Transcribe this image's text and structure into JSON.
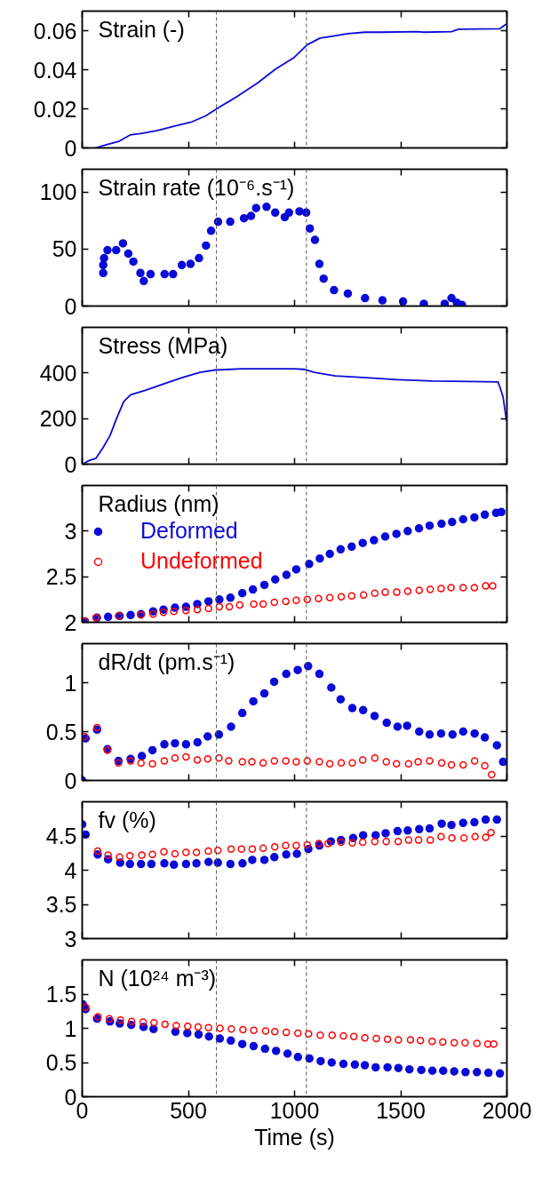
{
  "chart_data": [
    {
      "type": "line",
      "title": "Strain (-)",
      "xlim": [
        0,
        2000
      ],
      "xticks": [
        0,
        500,
        1000,
        1500,
        2000
      ],
      "ylim": [
        0,
        0.07
      ],
      "yticks": [
        0,
        0.02,
        0.04,
        0.06
      ],
      "tick_labels": "y",
      "grid": false,
      "ref_lines": [
        {
          "axis": "x",
          "value": 632,
          "color": "#555555",
          "line_style": "dashed"
        },
        {
          "axis": "x",
          "value": 1056,
          "color": "#555555",
          "line_style": "dashed"
        }
      ],
      "series": [
        {
          "color": "#0a0ad8",
          "line_style": "solid",
          "x": [
            62,
            111,
            176,
            225,
            274,
            355,
            436,
            518,
            583,
            638,
            730,
            827,
            909,
            998,
            1060,
            1120,
            1169,
            1251,
            1332,
            1414,
            1576,
            1609,
            1739,
            1772,
            1967,
            1997
          ],
          "values": [
            0,
            0.0015,
            0.0035,
            0.0066,
            0.0073,
            0.0089,
            0.0112,
            0.0134,
            0.0165,
            0.0203,
            0.0264,
            0.0333,
            0.0402,
            0.0463,
            0.0528,
            0.0562,
            0.057,
            0.0585,
            0.0592,
            0.0592,
            0.0595,
            0.0592,
            0.0595,
            0.0607,
            0.061,
            0.0634
          ]
        }
      ]
    },
    {
      "type": "scatter",
      "title": "Strain rate (10⁻⁶.s⁻¹)",
      "xlim": [
        0,
        2000
      ],
      "xticks": [
        0,
        500,
        1000,
        1500,
        2000
      ],
      "ylim": [
        0,
        120
      ],
      "yticks": [
        0,
        50,
        100
      ],
      "tick_labels": "y",
      "grid": false,
      "ref_lines": [
        {
          "axis": "x",
          "value": 632,
          "color": "#555555",
          "line_style": "dashed"
        },
        {
          "axis": "x",
          "value": 1056,
          "color": "#555555",
          "line_style": "dashed"
        }
      ],
      "series": [
        {
          "color": "#0a0ad8",
          "marker": "circle",
          "x": [
            99,
            99,
            103,
            119,
            160,
            192,
            217,
            241,
            274,
            290,
            322,
            388,
            428,
            469,
            510,
            550,
            583,
            607,
            640,
            697,
            762,
            795,
            819,
            868,
            909,
            954,
            974,
            1023,
            1055,
            1072,
            1096,
            1117,
            1137,
            1186,
            1251,
            1332,
            1414,
            1511,
            1609,
            1707,
            1739,
            1764,
            1788
          ],
          "values": [
            29,
            36,
            42,
            49,
            49,
            55,
            46,
            39,
            29,
            22,
            28,
            28,
            28,
            36,
            37,
            42,
            53,
            66,
            74,
            74,
            77,
            79,
            86,
            87,
            82,
            78,
            82,
            83,
            82,
            68,
            58,
            37,
            24,
            14,
            11,
            7,
            5,
            4,
            2,
            2,
            7,
            3,
            1
          ]
        }
      ]
    },
    {
      "type": "line",
      "title": "Stress (MPa)",
      "xlim": [
        0,
        2000
      ],
      "xticks": [
        0,
        500,
        1000,
        1500,
        2000
      ],
      "ylim": [
        0,
        600
      ],
      "yticks": [
        0,
        200,
        400
      ],
      "tick_labels": "y",
      "grid": false,
      "ref_lines": [
        {
          "axis": "x",
          "value": 632,
          "color": "#555555",
          "line_style": "dashed"
        },
        {
          "axis": "x",
          "value": 1056,
          "color": "#555555",
          "line_style": "dashed"
        }
      ],
      "series": [
        {
          "color": "#0a0ad8",
          "line_style": "solid",
          "x": [
            8,
            33,
            65,
            98,
            131,
            163,
            196,
            228,
            294,
            375,
            473,
            555,
            626,
            750,
            995,
            1044,
            1093,
            1191,
            1321,
            1485,
            1648,
            1958,
            1969,
            1982,
            1998
          ],
          "values": [
            4,
            16,
            26,
            72,
            125,
            203,
            275,
            304,
            323,
            349,
            380,
            403,
            413,
            418,
            418,
            416,
            403,
            387,
            380,
            371,
            365,
            361,
            332,
            295,
            190
          ]
        }
      ]
    },
    {
      "type": "scatter",
      "title": "Radius (nm)",
      "xlim": [
        0,
        2000
      ],
      "xticks": [
        0,
        500,
        1000,
        1500,
        2000
      ],
      "ylim": [
        2,
        3.5
      ],
      "yticks": [
        2,
        2.5,
        3
      ],
      "tick_labels": "y",
      "grid": false,
      "legend": "top left",
      "ref_lines": [
        {
          "axis": "x",
          "value": 632,
          "color": "#555555",
          "line_style": "dashed"
        },
        {
          "axis": "x",
          "value": 1056,
          "color": "#555555",
          "line_style": "dashed"
        }
      ],
      "series": [
        {
          "name": "Deformed",
          "color": "#0a0ad8",
          "marker": "circle",
          "x": [
            13,
            69,
            122,
            176,
            228,
            277,
            334,
            383,
            437,
            489,
            542,
            595,
            646,
            698,
            754,
            804,
            858,
            909,
            962,
            1008,
            1069,
            1119,
            1166,
            1217,
            1269,
            1321,
            1374,
            1427,
            1480,
            1533,
            1586,
            1636,
            1692,
            1742,
            1794,
            1847,
            1896,
            1949,
            1974
          ],
          "values": [
            2.01,
            2.05,
            2.06,
            2.07,
            2.08,
            2.09,
            2.12,
            2.14,
            2.16,
            2.17,
            2.2,
            2.23,
            2.25,
            2.27,
            2.32,
            2.36,
            2.41,
            2.47,
            2.52,
            2.58,
            2.64,
            2.7,
            2.75,
            2.8,
            2.83,
            2.87,
            2.9,
            2.94,
            2.97,
            3.0,
            3.03,
            3.06,
            3.08,
            3.1,
            3.13,
            3.15,
            3.18,
            3.2,
            3.21
          ]
        },
        {
          "name": "Undeformed",
          "color": "#ff0000",
          "marker": "circle_open",
          "x": [
            13,
            65,
            171,
            277,
            334,
            383,
            432,
            489,
            542,
            595,
            646,
            693,
            742,
            808,
            852,
            905,
            959,
            1008,
            1060,
            1113,
            1166,
            1220,
            1269,
            1325,
            1378,
            1427,
            1481,
            1533,
            1587,
            1639,
            1690,
            1737,
            1794,
            1847,
            1900,
            1933
          ],
          "values": [
            2.01,
            2.05,
            2.07,
            2.08,
            2.09,
            2.11,
            2.12,
            2.13,
            2.14,
            2.15,
            2.17,
            2.17,
            2.19,
            2.2,
            2.2,
            2.22,
            2.23,
            2.24,
            2.25,
            2.26,
            2.27,
            2.28,
            2.29,
            2.3,
            2.32,
            2.33,
            2.33,
            2.34,
            2.35,
            2.36,
            2.37,
            2.38,
            2.38,
            2.38,
            2.4,
            2.4
          ]
        }
      ]
    },
    {
      "type": "scatter",
      "title": "dR/dt (pm.s⁻¹)",
      "xlim": [
        0,
        2000
      ],
      "xticks": [
        0,
        500,
        1000,
        1500,
        2000
      ],
      "ylim": [
        0,
        1.4
      ],
      "yticks": [
        0,
        0.5,
        1
      ],
      "tick_labels": "y",
      "grid": false,
      "ref_lines": [
        {
          "axis": "x",
          "value": 632,
          "color": "#555555",
          "line_style": "dashed"
        },
        {
          "axis": "x",
          "value": 1056,
          "color": "#555555",
          "line_style": "dashed"
        }
      ],
      "series": [
        {
          "color": "#0a0ad8",
          "marker": "circle",
          "x": [
            0,
            16,
            70,
            119,
            171,
            228,
            281,
            331,
            387,
            437,
            489,
            543,
            591,
            644,
            701,
            754,
            806,
            858,
            904,
            961,
            1015,
            1064,
            1117,
            1173,
            1217,
            1272,
            1323,
            1377,
            1434,
            1485,
            1530,
            1587,
            1636,
            1690,
            1744,
            1794,
            1848,
            1896,
            1953,
            1982
          ],
          "values": [
            0,
            0.43,
            0.52,
            0.32,
            0.2,
            0.22,
            0.25,
            0.31,
            0.37,
            0.38,
            0.37,
            0.39,
            0.45,
            0.47,
            0.55,
            0.69,
            0.81,
            0.89,
            1.01,
            1.09,
            1.13,
            1.17,
            1.09,
            0.95,
            0.83,
            0.74,
            0.72,
            0.66,
            0.59,
            0.55,
            0.56,
            0.5,
            0.47,
            0.48,
            0.47,
            0.5,
            0.48,
            0.44,
            0.36,
            0.19
          ]
        },
        {
          "color": "#ff0000",
          "marker": "circle_open",
          "x": [
            11,
            70,
            119,
            171,
            228,
            277,
            331,
            387,
            437,
            489,
            542,
            591,
            644,
            690,
            754,
            799,
            852,
            905,
            959,
            1008,
            1060,
            1117,
            1166,
            1220,
            1272,
            1321,
            1378,
            1432,
            1480,
            1537,
            1582,
            1636,
            1693,
            1739,
            1794,
            1848,
            1896,
            1928
          ],
          "values": [
            0.45,
            0.54,
            0.31,
            0.18,
            0.2,
            0.18,
            0.17,
            0.2,
            0.23,
            0.24,
            0.21,
            0.22,
            0.23,
            0.2,
            0.19,
            0.19,
            0.18,
            0.2,
            0.2,
            0.19,
            0.2,
            0.19,
            0.17,
            0.18,
            0.18,
            0.21,
            0.23,
            0.19,
            0.17,
            0.17,
            0.19,
            0.2,
            0.18,
            0.16,
            0.16,
            0.2,
            0.15,
            0.06
          ]
        }
      ]
    },
    {
      "type": "scatter",
      "title": "fv (%)",
      "xlim": [
        0,
        2000
      ],
      "xticks": [
        0,
        500,
        1000,
        1500,
        2000
      ],
      "ylim": [
        3,
        5
      ],
      "yticks": [
        3,
        3.5,
        4,
        4.5
      ],
      "tick_labels": "y",
      "grid": false,
      "ref_lines": [
        {
          "axis": "x",
          "value": 632,
          "color": "#555555",
          "line_style": "dashed"
        },
        {
          "axis": "x",
          "value": 1056,
          "color": "#555555",
          "line_style": "dashed"
        }
      ],
      "series": [
        {
          "color": "#0a0ad8",
          "marker": "circle",
          "x": [
            0,
            16,
            73,
            122,
            179,
            225,
            277,
            326,
            387,
            432,
            489,
            538,
            595,
            639,
            698,
            755,
            801,
            858,
            905,
            961,
            1011,
            1065,
            1117,
            1171,
            1219,
            1276,
            1323,
            1382,
            1429,
            1485,
            1533,
            1587,
            1636,
            1693,
            1739,
            1794,
            1847,
            1900,
            1953
          ],
          "values": [
            4.67,
            4.52,
            4.23,
            4.16,
            4.11,
            4.09,
            4.09,
            4.09,
            4.1,
            4.08,
            4.09,
            4.1,
            4.12,
            4.11,
            4.09,
            4.1,
            4.15,
            4.15,
            4.19,
            4.23,
            4.24,
            4.31,
            4.36,
            4.42,
            4.44,
            4.47,
            4.51,
            4.51,
            4.54,
            4.57,
            4.58,
            4.6,
            4.61,
            4.68,
            4.66,
            4.69,
            4.7,
            4.74,
            4.74
          ]
        },
        {
          "color": "#ff0000",
          "marker": "circle_open",
          "x": [
            73,
            122,
            176,
            225,
            281,
            331,
            385,
            437,
            489,
            538,
            594,
            639,
            701,
            750,
            801,
            852,
            907,
            958,
            1008,
            1060,
            1114,
            1158,
            1219,
            1272,
            1321,
            1378,
            1432,
            1488,
            1537,
            1584,
            1639,
            1690,
            1741,
            1798,
            1850,
            1900,
            1925
          ],
          "values": [
            4.28,
            4.22,
            4.19,
            4.21,
            4.22,
            4.23,
            4.27,
            4.24,
            4.26,
            4.26,
            4.28,
            4.29,
            4.31,
            4.31,
            4.31,
            4.32,
            4.34,
            4.36,
            4.36,
            4.37,
            4.39,
            4.39,
            4.41,
            4.4,
            4.41,
            4.42,
            4.42,
            4.42,
            4.44,
            4.44,
            4.44,
            4.49,
            4.47,
            4.47,
            4.49,
            4.48,
            4.55
          ]
        }
      ]
    },
    {
      "type": "scatter",
      "title": "N (10²⁴ m⁻³)",
      "xlabel": "Time (s)",
      "xlim": [
        0,
        2000
      ],
      "xticks": [
        0,
        500,
        1000,
        1500,
        2000
      ],
      "ylim": [
        0,
        2
      ],
      "yticks": [
        0,
        0.5,
        1,
        1.5
      ],
      "grid": false,
      "ref_lines": [
        {
          "axis": "x",
          "value": 632,
          "color": "#555555",
          "line_style": "dashed"
        },
        {
          "axis": "x",
          "value": 1056,
          "color": "#555555",
          "line_style": "dashed"
        }
      ],
      "series": [
        {
          "color": "#0a0ad8",
          "marker": "circle",
          "x": [
            3,
            16,
            70,
            131,
            177,
            231,
            289,
            336,
            439,
            495,
            548,
            597,
            648,
            700,
            754,
            807,
            861,
            913,
            967,
            1016,
            1070,
            1123,
            1175,
            1230,
            1284,
            1331,
            1382,
            1438,
            1489,
            1541,
            1597,
            1649,
            1700,
            1752,
            1805,
            1859,
            1913,
            1967
          ],
          "values": [
            1.35,
            1.28,
            1.14,
            1.1,
            1.07,
            1.05,
            1.02,
            0.99,
            0.95,
            0.93,
            0.91,
            0.88,
            0.85,
            0.82,
            0.77,
            0.74,
            0.7,
            0.67,
            0.63,
            0.58,
            0.56,
            0.52,
            0.5,
            0.48,
            0.47,
            0.46,
            0.43,
            0.43,
            0.42,
            0.4,
            0.39,
            0.38,
            0.38,
            0.37,
            0.36,
            0.36,
            0.35,
            0.34
          ]
        },
        {
          "color": "#ff0000",
          "marker": "circle_open",
          "x": [
            16,
            74,
            128,
            180,
            233,
            287,
            338,
            390,
            443,
            497,
            546,
            595,
            649,
            702,
            757,
            808,
            864,
            907,
            961,
            1016,
            1066,
            1121,
            1177,
            1230,
            1279,
            1331,
            1385,
            1438,
            1489,
            1546,
            1593,
            1648,
            1698,
            1752,
            1803,
            1859,
            1910,
            1938
          ],
          "values": [
            1.31,
            1.17,
            1.14,
            1.12,
            1.1,
            1.09,
            1.08,
            1.06,
            1.04,
            1.03,
            1.02,
            1.01,
            1.0,
            0.99,
            0.98,
            0.97,
            0.96,
            0.95,
            0.94,
            0.93,
            0.92,
            0.9,
            0.9,
            0.89,
            0.88,
            0.86,
            0.85,
            0.84,
            0.83,
            0.83,
            0.82,
            0.81,
            0.8,
            0.79,
            0.79,
            0.78,
            0.77,
            0.77
          ]
        }
      ]
    }
  ]
}
